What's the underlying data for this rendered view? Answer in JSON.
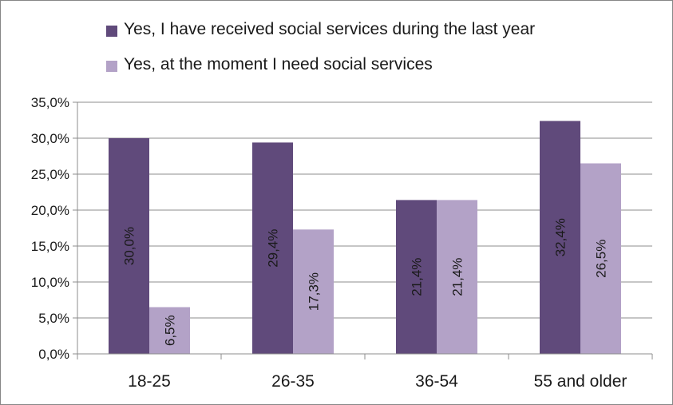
{
  "chart_data": {
    "type": "bar",
    "categories": [
      "18-25",
      "26-35",
      "36-54",
      "55 and older"
    ],
    "series": [
      {
        "name": "Yes, I have received social services during the last year",
        "values": [
          30.0,
          29.4,
          21.4,
          32.4
        ],
        "labels": [
          "30,0%",
          "29,4%",
          "21,4%",
          "32,4%"
        ],
        "color": "#604a7b"
      },
      {
        "name": "Yes, at the moment I need social services",
        "values": [
          6.5,
          17.3,
          21.4,
          26.5
        ],
        "labels": [
          "6,5%",
          "17,3%",
          "21,4%",
          "26,5%"
        ],
        "color": "#b3a2c7"
      }
    ],
    "ylim": [
      0,
      35
    ],
    "yticks": [
      0,
      5,
      10,
      15,
      20,
      25,
      30,
      35
    ],
    "ytick_labels": [
      "0,0%",
      "5,0%",
      "10,0%",
      "15,0%",
      "20,0%",
      "25,0%",
      "30,0%",
      "35,0%"
    ],
    "grid": true,
    "legend_position": "top",
    "title": "",
    "xlabel": "",
    "ylabel": ""
  }
}
